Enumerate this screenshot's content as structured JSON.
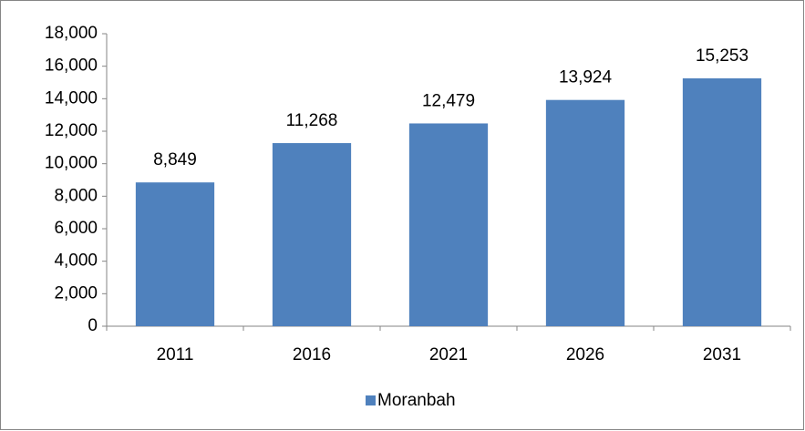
{
  "chart_data": {
    "type": "bar",
    "categories": [
      "2011",
      "2016",
      "2021",
      "2026",
      "2031"
    ],
    "series": [
      {
        "name": "Moranbah",
        "color": "#4f81bd",
        "values": [
          8849,
          11268,
          12479,
          13924,
          15253
        ],
        "value_labels": [
          "8,849",
          "11,268",
          "12,479",
          "13,924",
          "15,253"
        ]
      }
    ],
    "ylim": [
      0,
      18000
    ],
    "yticks": [
      0,
      {
        "value": 2000,
        "label": "2,000"
      },
      {
        "value": 4000,
        "label": "4,000"
      },
      {
        "value": 6000,
        "label": "6,000"
      },
      {
        "value": 8000,
        "label": "8,000"
      },
      {
        "value": 10000,
        "label": "10,000"
      },
      {
        "value": 12000,
        "label": "12,000"
      },
      {
        "value": 14000,
        "label": "14,000"
      },
      {
        "value": 16000,
        "label": "16,000"
      },
      {
        "value": 18000,
        "label": "18,000"
      }
    ],
    "grid": false,
    "legend": "bottom"
  }
}
